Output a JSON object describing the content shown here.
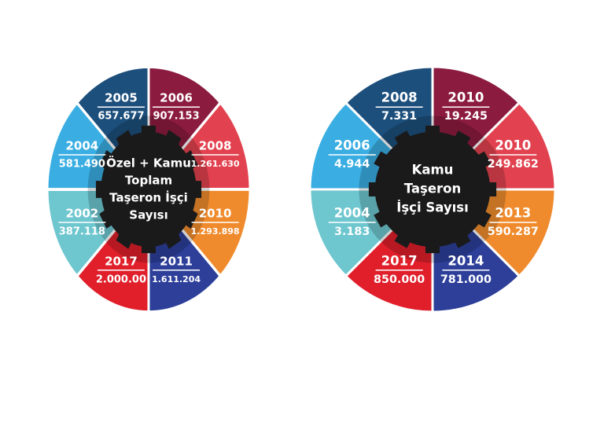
{
  "wheels": [
    {
      "title_lines": [
        "Özel + Kamu",
        "Toplam",
        "Taşeron İşçi",
        "Sayısı"
      ],
      "segments": [
        {
          "year": "2006",
          "value": "907.153",
          "color": "#8c1b40"
        },
        {
          "year": "2008",
          "value": "1.261.630",
          "color": "#e2424f"
        },
        {
          "year": "2010",
          "value": "1.293.898",
          "color": "#f08b2d"
        },
        {
          "year": "2011",
          "value": "1.611.204",
          "color": "#2d3f99"
        },
        {
          "year": "2017",
          "value": "2.000.00",
          "color": "#e01f2b"
        },
        {
          "year": "2002",
          "value": "387.118",
          "color": "#6ec6cf"
        },
        {
          "year": "2004",
          "value": "581.490",
          "color": "#3aaee2"
        },
        {
          "year": "2005",
          "value": "657.677",
          "color": "#1d4f7c"
        }
      ]
    },
    {
      "title_lines": [
        "Kamu",
        "Taşeron",
        "İşçi Sayısı"
      ],
      "segments": [
        {
          "year": "2010",
          "value": "19.245",
          "color": "#8c1b40"
        },
        {
          "year": "2010",
          "value": "249.862",
          "color": "#e2424f"
        },
        {
          "year": "2013",
          "value": "590.287",
          "color": "#f08b2d"
        },
        {
          "year": "2014",
          "value": "781.000",
          "color": "#2d3f99"
        },
        {
          "year": "2017",
          "value": "850.000",
          "color": "#e01f2b"
        },
        {
          "year": "2004",
          "value": "3.183",
          "color": "#6ec6cf"
        },
        {
          "year": "2006",
          "value": "4.944",
          "color": "#3aaee2"
        },
        {
          "year": "2008",
          "value": "7.331",
          "color": "#1d4f7c"
        }
      ]
    }
  ]
}
